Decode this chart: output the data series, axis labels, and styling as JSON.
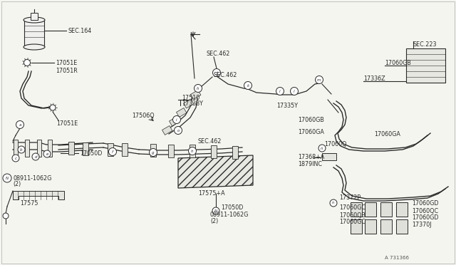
{
  "bg_color": "#f5f5f0",
  "line_color": "#2a2a2a",
  "fig_id": "A 731366",
  "labels": {
    "SEC164": "SEC.164",
    "p17051E_1": "17051E",
    "p17051R": "17051R",
    "p17051E_2": "17051E",
    "p17510": "17510",
    "p17338Y": "17338Y",
    "p17506Q": "17506Q",
    "SEC462_1": "SEC.462",
    "SEC462_2": "SEC.462",
    "p17575A": "17575+A",
    "p17050D_1": "17050D",
    "p17050D_2": "17050D",
    "p08911_1": "08911-1062G",
    "p08911_2": "08911-1062G",
    "p2_1": "(2)",
    "p2_2": "(2)",
    "p17575": "17575",
    "p17335Y": "17335Y",
    "p17336Z": "17336Z",
    "p17060GB_1": "17060GB",
    "p17060GB_2": "17060GB",
    "p17060GA_1": "17060GA",
    "p17060GA_2": "17060GA",
    "p17060Q": "17060Q",
    "p17368A": "17368+A",
    "p1879INC": "1879INC",
    "p17372P": "17372P",
    "p17060GC_1": "17060GC",
    "p17060GC_2": "17060GC",
    "p17060QB": "17060QB",
    "p17060GD_1": "17060GD",
    "p17060GD_2": "17060GD",
    "p17060QC": "17060QC",
    "p17370J": "17370J",
    "SEC223": "SEC.223"
  },
  "circles": {
    "a": "a",
    "b": "b",
    "c": "c",
    "d": "d",
    "e": "e",
    "f": "f",
    "g": "g",
    "h": "h",
    "i": "i",
    "j": "j",
    "k": "k",
    "l": "l",
    "m": "m",
    "n": "n",
    "o": "o"
  }
}
